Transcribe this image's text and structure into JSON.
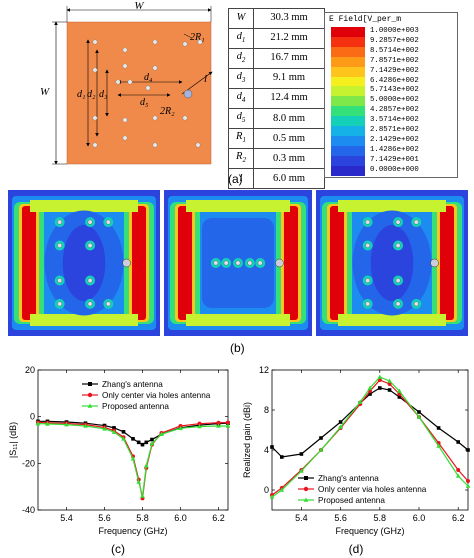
{
  "figure": {
    "captions": {
      "a": "(a)",
      "b": "(b)",
      "c": "(c)",
      "d": "(d)"
    }
  },
  "geometry": {
    "labels": {
      "W_top": "W",
      "W_left": "W",
      "d1": "d₁",
      "d2": "d₂",
      "d3": "d₃",
      "d4": "d₄",
      "d5": "d₅",
      "R1": "2R₁",
      "R2": "2R₂",
      "l": "l"
    },
    "colors": {
      "substrate": "#f08a4b",
      "hole": "#e8e8e8",
      "feed": "#a8b4e0"
    }
  },
  "param_table": {
    "rows": [
      {
        "symbol": "W",
        "sub": "",
        "value": "30.3 mm"
      },
      {
        "symbol": "d",
        "sub": "1",
        "value": "21.2 mm"
      },
      {
        "symbol": "d",
        "sub": "2",
        "value": "16.7 mm"
      },
      {
        "symbol": "d",
        "sub": "3",
        "value": "9.1 mm"
      },
      {
        "symbol": "d",
        "sub": "4",
        "value": "12.4 mm"
      },
      {
        "symbol": "d",
        "sub": "5",
        "value": "8.0 mm"
      },
      {
        "symbol": "R",
        "sub": "1",
        "value": "0.5 mm"
      },
      {
        "symbol": "R",
        "sub": "2",
        "value": "0.3 mm"
      },
      {
        "symbol": "l",
        "sub": "",
        "value": "6.0 mm"
      }
    ]
  },
  "colorbar": {
    "title": "E Field[V_per_m",
    "labels": [
      "1.0000e+003",
      "9.2857e+002",
      "8.5714e+002",
      "7.8571e+002",
      "7.1429e+002",
      "6.4286e+002",
      "5.7143e+002",
      "5.0000e+002",
      "4.2857e+002",
      "3.5714e+002",
      "2.8571e+002",
      "2.1429e+002",
      "1.4286e+002",
      "7.1429e+001",
      "0.0000e+000"
    ],
    "colors": [
      "#e0000a",
      "#f53010",
      "#fb6a14",
      "#fd9a18",
      "#ffc51c",
      "#f6ef1f",
      "#c6f230",
      "#7ee84a",
      "#33e07a",
      "#14d0b8",
      "#14b2e6",
      "#1c8cf0",
      "#2466ea",
      "#2a44dd",
      "#2a2acb"
    ]
  },
  "chart_data": [
    {
      "type": "line",
      "panel": "c",
      "xlabel": "Frequency (GHz)",
      "ylabel": "|S₁₁| (dB)",
      "xlim": [
        5.25,
        6.25
      ],
      "ylim": [
        -40,
        20
      ],
      "xticks": [
        "5.4",
        "5.6",
        "5.8",
        "6.0",
        "6.2"
      ],
      "yticks": [
        "20",
        "0",
        "-20",
        "-40"
      ],
      "legend_position": "top-center",
      "series": [
        {
          "name": "Zhang's antenna",
          "color": "#000000",
          "marker": "square",
          "x": [
            5.25,
            5.3,
            5.4,
            5.5,
            5.6,
            5.65,
            5.7,
            5.75,
            5.78,
            5.8,
            5.82,
            5.85,
            5.9,
            6.0,
            6.1,
            6.2,
            6.25
          ],
          "y": [
            -2.0,
            -2.0,
            -2.3,
            -2.8,
            -3.8,
            -4.8,
            -6.5,
            -9.5,
            -11.0,
            -12.0,
            -11.0,
            -9.8,
            -7.5,
            -4.8,
            -3.6,
            -3.0,
            -2.8
          ]
        },
        {
          "name": "Only center via holes antenna",
          "color": "#e8141e",
          "marker": "circle",
          "x": [
            5.25,
            5.3,
            5.4,
            5.5,
            5.6,
            5.65,
            5.7,
            5.75,
            5.78,
            5.8,
            5.82,
            5.85,
            5.9,
            6.0,
            6.1,
            6.2,
            6.25
          ],
          "y": [
            -2.5,
            -2.6,
            -2.9,
            -3.4,
            -4.6,
            -6.0,
            -8.8,
            -17.0,
            -27.0,
            -35.0,
            -22.0,
            -12.0,
            -7.0,
            -4.0,
            -3.0,
            -2.6,
            -2.5
          ]
        },
        {
          "name": "Proposed antenna",
          "color": "#33dd33",
          "marker": "triangle",
          "x": [
            5.25,
            5.3,
            5.4,
            5.5,
            5.6,
            5.65,
            5.7,
            5.75,
            5.78,
            5.8,
            5.82,
            5.85,
            5.9,
            6.0,
            6.1,
            6.2,
            6.25
          ],
          "y": [
            -3.0,
            -3.1,
            -3.4,
            -4.0,
            -5.2,
            -6.6,
            -9.5,
            -18.0,
            -28.0,
            -34.0,
            -21.0,
            -11.5,
            -7.5,
            -5.0,
            -4.2,
            -4.0,
            -4.0
          ]
        }
      ]
    },
    {
      "type": "line",
      "panel": "d",
      "xlabel": "Frequency (GHz)",
      "ylabel": "Realized gain (dBi)",
      "xlim": [
        5.25,
        6.25
      ],
      "ylim": [
        -2,
        12
      ],
      "xticks": [
        "5.4",
        "5.6",
        "5.8",
        "6.0",
        "6.2"
      ],
      "yticks": [
        "12",
        "8",
        "4",
        "0"
      ],
      "legend_position": "bottom-center",
      "series": [
        {
          "name": "Zhang's antenna",
          "color": "#000000",
          "marker": "square",
          "x": [
            5.25,
            5.3,
            5.4,
            5.5,
            5.6,
            5.7,
            5.75,
            5.8,
            5.85,
            5.9,
            6.0,
            6.1,
            6.2,
            6.25
          ],
          "y": [
            4.3,
            3.3,
            3.6,
            5.2,
            6.8,
            8.7,
            9.6,
            10.2,
            10.0,
            9.3,
            7.8,
            6.2,
            4.8,
            4.0
          ]
        },
        {
          "name": "Only center via holes antenna",
          "color": "#e8141e",
          "marker": "circle",
          "x": [
            5.25,
            5.3,
            5.4,
            5.5,
            5.6,
            5.7,
            5.75,
            5.8,
            5.85,
            5.9,
            6.0,
            6.1,
            6.2,
            6.25
          ],
          "y": [
            -0.5,
            0.2,
            2.0,
            4.0,
            6.2,
            8.6,
            9.9,
            11.0,
            10.6,
            9.6,
            7.3,
            4.7,
            2.0,
            0.9
          ]
        },
        {
          "name": "Proposed antenna",
          "color": "#33dd33",
          "marker": "triangle",
          "x": [
            5.25,
            5.3,
            5.4,
            5.5,
            5.6,
            5.7,
            5.75,
            5.8,
            5.85,
            5.9,
            6.0,
            6.1,
            6.2,
            6.25
          ],
          "y": [
            -0.7,
            0.0,
            1.9,
            4.0,
            6.3,
            8.8,
            10.2,
            11.3,
            10.9,
            9.9,
            7.3,
            4.4,
            1.4,
            0.4
          ]
        }
      ]
    }
  ]
}
